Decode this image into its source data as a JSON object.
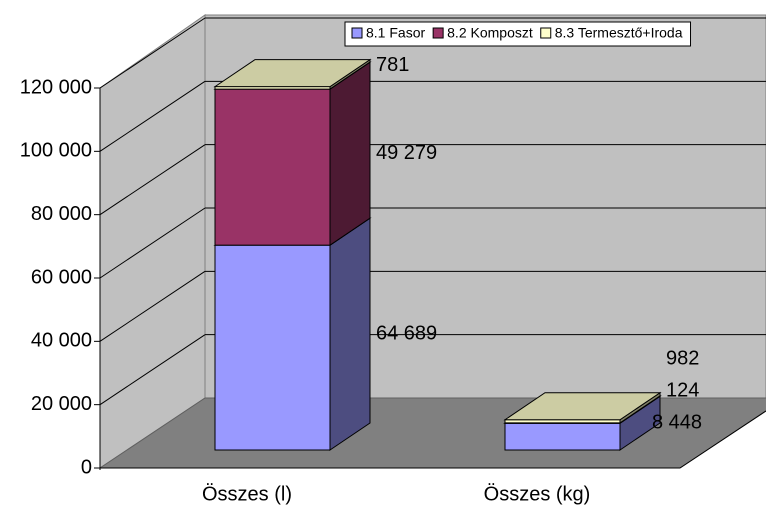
{
  "chart_data": {
    "type": "bar3d_stacked",
    "categories": [
      "Összes (l)",
      "Összes (kg)"
    ],
    "series": [
      {
        "name": "8.1 Fasor",
        "color": "#9999ff",
        "values": [
          64689,
          8448
        ],
        "value_labels": [
          "64 689",
          "8 448"
        ]
      },
      {
        "name": "8.2 Komposzt",
        "color": "#993366",
        "values": [
          49279,
          124
        ],
        "value_labels": [
          "49 279",
          "124"
        ]
      },
      {
        "name": "8.3 Termesztő+Iroda",
        "color": "#ffffcc",
        "values": [
          781,
          982
        ],
        "value_labels": [
          "781",
          "982"
        ]
      }
    ],
    "ylim": [
      0,
      120000
    ],
    "yticks": [
      0,
      {
        "value": 20000,
        "label": "20 000"
      },
      {
        "value": 40000,
        "label": "40 000"
      },
      {
        "value": 60000,
        "label": "60 000"
      },
      {
        "value": 80000,
        "label": "80 000"
      },
      {
        "value": 100000,
        "label": "100 000"
      },
      {
        "value": 120000,
        "label": "120 000"
      }
    ],
    "grid": true,
    "legend": "top-right"
  }
}
